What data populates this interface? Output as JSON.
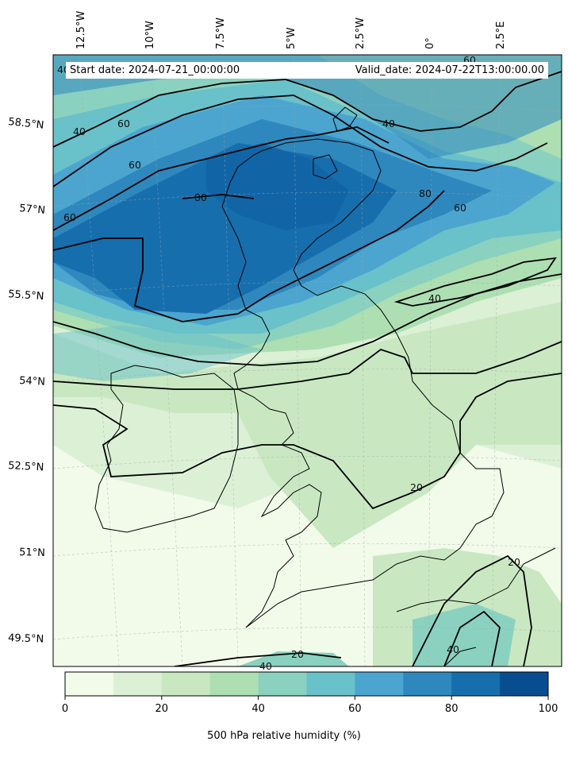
{
  "header": {
    "start_label": "Start date: 2024-07-21_00:00:00",
    "valid_label": "Valid_date: 2024-07-22T13:00:00.00"
  },
  "map": {
    "lon_labels": [
      "12.5°W",
      "10°W",
      "7.5°W",
      "5°W",
      "2.5°W",
      "0°",
      "2.5°E"
    ],
    "lat_labels": [
      "58.5°N",
      "57°N",
      "55.5°N",
      "54°N",
      "52.5°N",
      "51°N",
      "49.5°N"
    ],
    "contour_levels": [
      20,
      40,
      60,
      80
    ],
    "contour_labels": [
      "40",
      "40",
      "60",
      "60",
      "60",
      "80",
      "80",
      "40",
      "60",
      "40",
      "20",
      "20",
      "20",
      "40",
      "40",
      "60"
    ]
  },
  "colorbar": {
    "title": "500 hPa relative humidity (%)",
    "ticks": [
      "0",
      "20",
      "40",
      "60",
      "80",
      "100"
    ],
    "colors": [
      "#f2faea",
      "#dcf0d6",
      "#c9e8c2",
      "#addfb2",
      "#8bd1c0",
      "#69c1ca",
      "#4ba5cf",
      "#2e87bd",
      "#166ead",
      "#084d8f"
    ]
  }
}
